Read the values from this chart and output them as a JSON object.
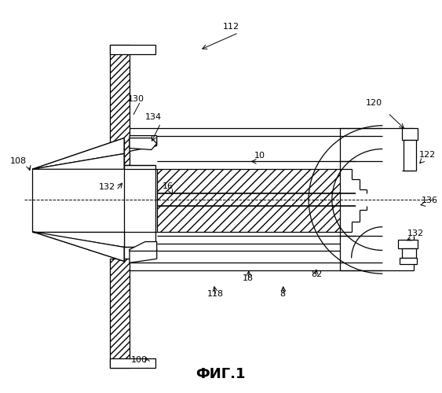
{
  "bg_color": "#ffffff",
  "title": "ФИГ.1",
  "lw": 0.9
}
